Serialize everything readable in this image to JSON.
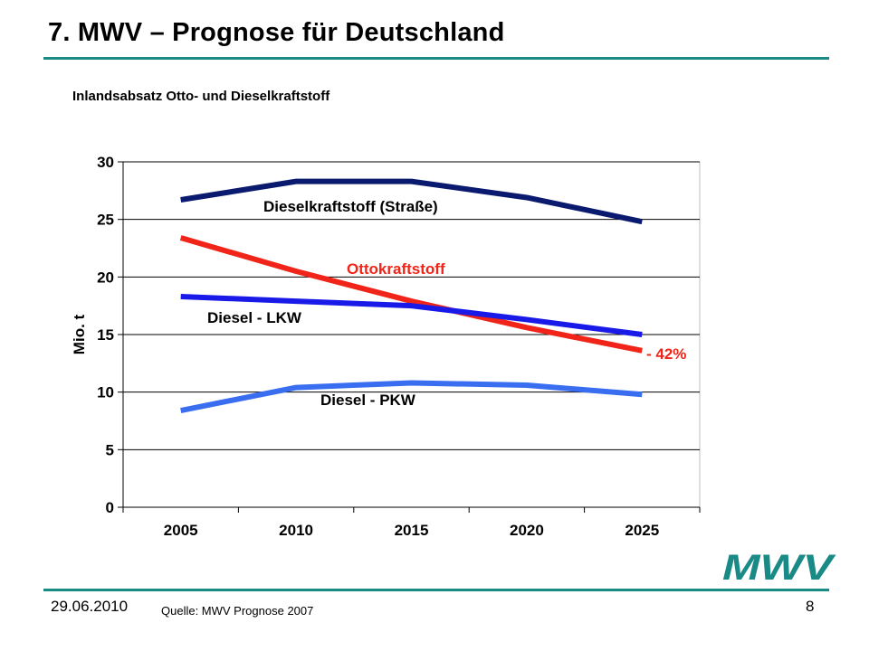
{
  "slide": {
    "title": "7. MWV – Prognose für Deutschland",
    "subtitle": "Inlandsabsatz Otto- und Dieselkraftstoff",
    "date": "29.06.2010",
    "source": "Quelle: MWV Prognose 2007",
    "page_number": "8",
    "logo_text": "MWV",
    "accent_color": "#1a8a86"
  },
  "chart_data": {
    "type": "line",
    "categories": [
      "2005",
      "2010",
      "2015",
      "2020",
      "2025"
    ],
    "ylabel": "Mio. t",
    "ylim": [
      0,
      30
    ],
    "yticks": [
      0,
      5,
      10,
      15,
      20,
      25,
      30
    ],
    "grid": true,
    "series": [
      {
        "name": "Dieselkraftstoff (Straße)",
        "color": "#0a1a6e",
        "values": [
          26.7,
          28.3,
          28.3,
          26.9,
          24.8
        ]
      },
      {
        "name": "Ottokraftstoff",
        "color": "#f02418",
        "values": [
          23.4,
          20.5,
          17.9,
          15.6,
          13.6
        ]
      },
      {
        "name": "Diesel - LKW",
        "color": "#1a1ae8",
        "values": [
          18.3,
          17.9,
          17.5,
          16.3,
          15.0
        ]
      },
      {
        "name": "Diesel - PKW",
        "color": "#3a6ef0",
        "values": [
          8.4,
          10.4,
          10.8,
          10.6,
          9.8
        ]
      }
    ],
    "annotations": [
      {
        "text": "- 42%",
        "color": "#f02418"
      }
    ]
  }
}
